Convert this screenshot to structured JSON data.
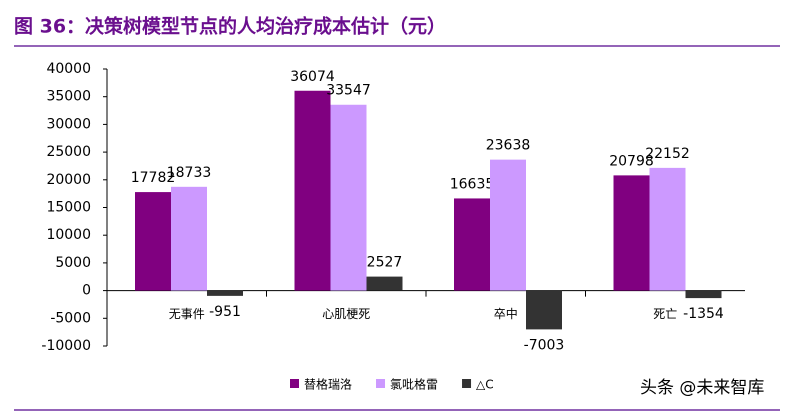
{
  "chart_data": {
    "type": "bar",
    "title": "图 36：决策树模型节点的人均治疗成本估计（元）",
    "categories": [
      "无事件",
      "心肌梗死",
      "卒中",
      "死亡"
    ],
    "series": [
      {
        "name": "替格瑞洛",
        "color": "#800080",
        "values": [
          17782,
          36074,
          16635,
          20798
        ]
      },
      {
        "name": "氯吡格雷",
        "color": "#cc99ff",
        "values": [
          18733,
          33547,
          23638,
          22152
        ]
      },
      {
        "name": "△C",
        "color": "#333333",
        "values": [
          -951,
          2527,
          -7003,
          -1354
        ]
      }
    ],
    "ylim": [
      -10000,
      40000
    ],
    "yticks": [
      -10000,
      -5000,
      0,
      5000,
      10000,
      15000,
      20000,
      25000,
      30000,
      35000,
      40000
    ],
    "negative_color": "#ff0000",
    "legend": "bottom"
  },
  "watermark": "头条 @未来智库"
}
